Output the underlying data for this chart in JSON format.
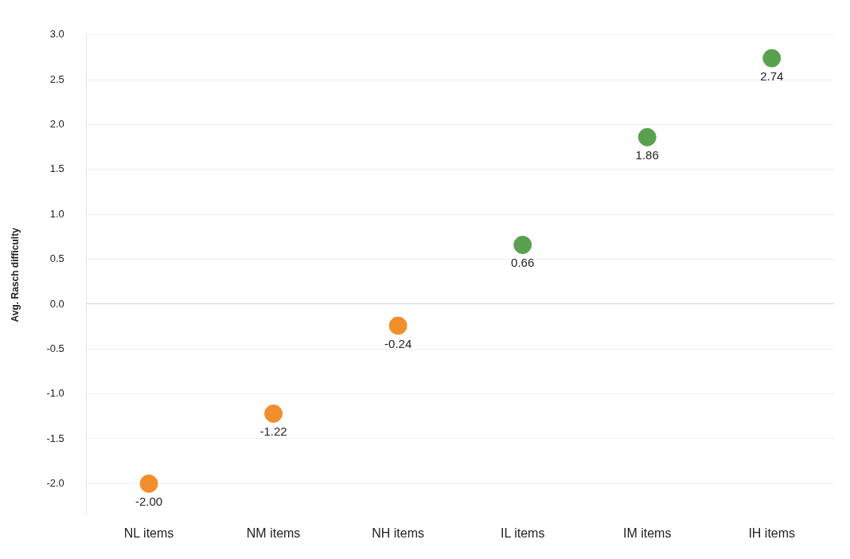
{
  "chart_data": {
    "type": "scatter",
    "ylabel": "Avg. Rasch difficulty",
    "categories": [
      "NL items",
      "NM items",
      "NH items",
      "IL items",
      "IM items",
      "IH items"
    ],
    "values": [
      -2.0,
      -1.22,
      -0.24,
      0.66,
      1.86,
      2.74
    ],
    "colors": [
      "#f28e2b",
      "#f28e2b",
      "#f28e2b",
      "#59a14f",
      "#59a14f",
      "#59a14f"
    ],
    "value_labels": [
      "-2.00",
      "-1.22",
      "-0.24",
      "0.66",
      "1.86",
      "2.74"
    ],
    "ylim": [
      -2.35,
      3.0
    ],
    "yticks": [
      {
        "value": -2.0,
        "label": "-2.0"
      },
      {
        "value": -1.5,
        "label": "-1.5"
      },
      {
        "value": -1.0,
        "label": "-1.0"
      },
      {
        "value": -0.5,
        "label": "-0.5"
      },
      {
        "value": 0,
        "label": "0.0"
      },
      {
        "value": 0.5,
        "label": "0.5"
      },
      {
        "value": 1.0,
        "label": "1.0"
      },
      {
        "value": 1.5,
        "label": "1.5"
      },
      {
        "value": 2.0,
        "label": "2.0"
      },
      {
        "value": 2.5,
        "label": "2.5"
      },
      {
        "value": 3.0,
        "label": "3.0"
      }
    ],
    "grid": "y",
    "legend": false,
    "marker": "circle"
  }
}
